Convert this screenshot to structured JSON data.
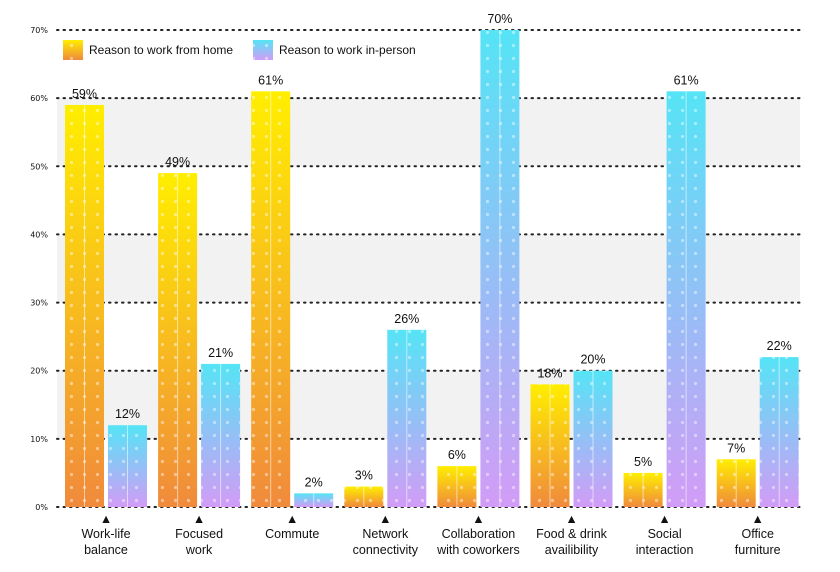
{
  "chart_data": {
    "type": "bar",
    "title": "",
    "xlabel": "",
    "ylabel": "",
    "ylim": [
      0,
      70
    ],
    "yticks": [
      0,
      10,
      20,
      30,
      40,
      50,
      60,
      70
    ],
    "ytick_labels": [
      "0%",
      "10%",
      "20%",
      "30%",
      "40%",
      "50%",
      "60%",
      "70%"
    ],
    "grid": true,
    "legend_position": "top-left",
    "categories": [
      [
        "Work-life",
        "balance"
      ],
      [
        "Focused",
        "work"
      ],
      [
        "Commute"
      ],
      [
        "Network",
        "connectivity"
      ],
      [
        "Collaboration",
        "with coworkers"
      ],
      [
        "Food & drink",
        "availibility"
      ],
      [
        "Social",
        "interaction"
      ],
      [
        "Office",
        "furniture"
      ]
    ],
    "series": [
      {
        "name": "Reason to work from home",
        "values": [
          59,
          49,
          61,
          3,
          6,
          18,
          5,
          7
        ],
        "labels": [
          "59%",
          "49%",
          "61%",
          "3%",
          "6%",
          "18%",
          "5%",
          "7%"
        ],
        "colors": {
          "top": "#ffee00",
          "bottom": "#f08a3c"
        }
      },
      {
        "name": "Reason to work in-person",
        "values": [
          12,
          21,
          2,
          26,
          70,
          20,
          61,
          22
        ],
        "labels": [
          "12%",
          "21%",
          "2%",
          "26%",
          "70%",
          "20%",
          "61%",
          "22%"
        ],
        "colors": {
          "top": "#55e4f6",
          "bottom": "#d29cf6"
        }
      }
    ],
    "marker_glyph": "▲"
  }
}
